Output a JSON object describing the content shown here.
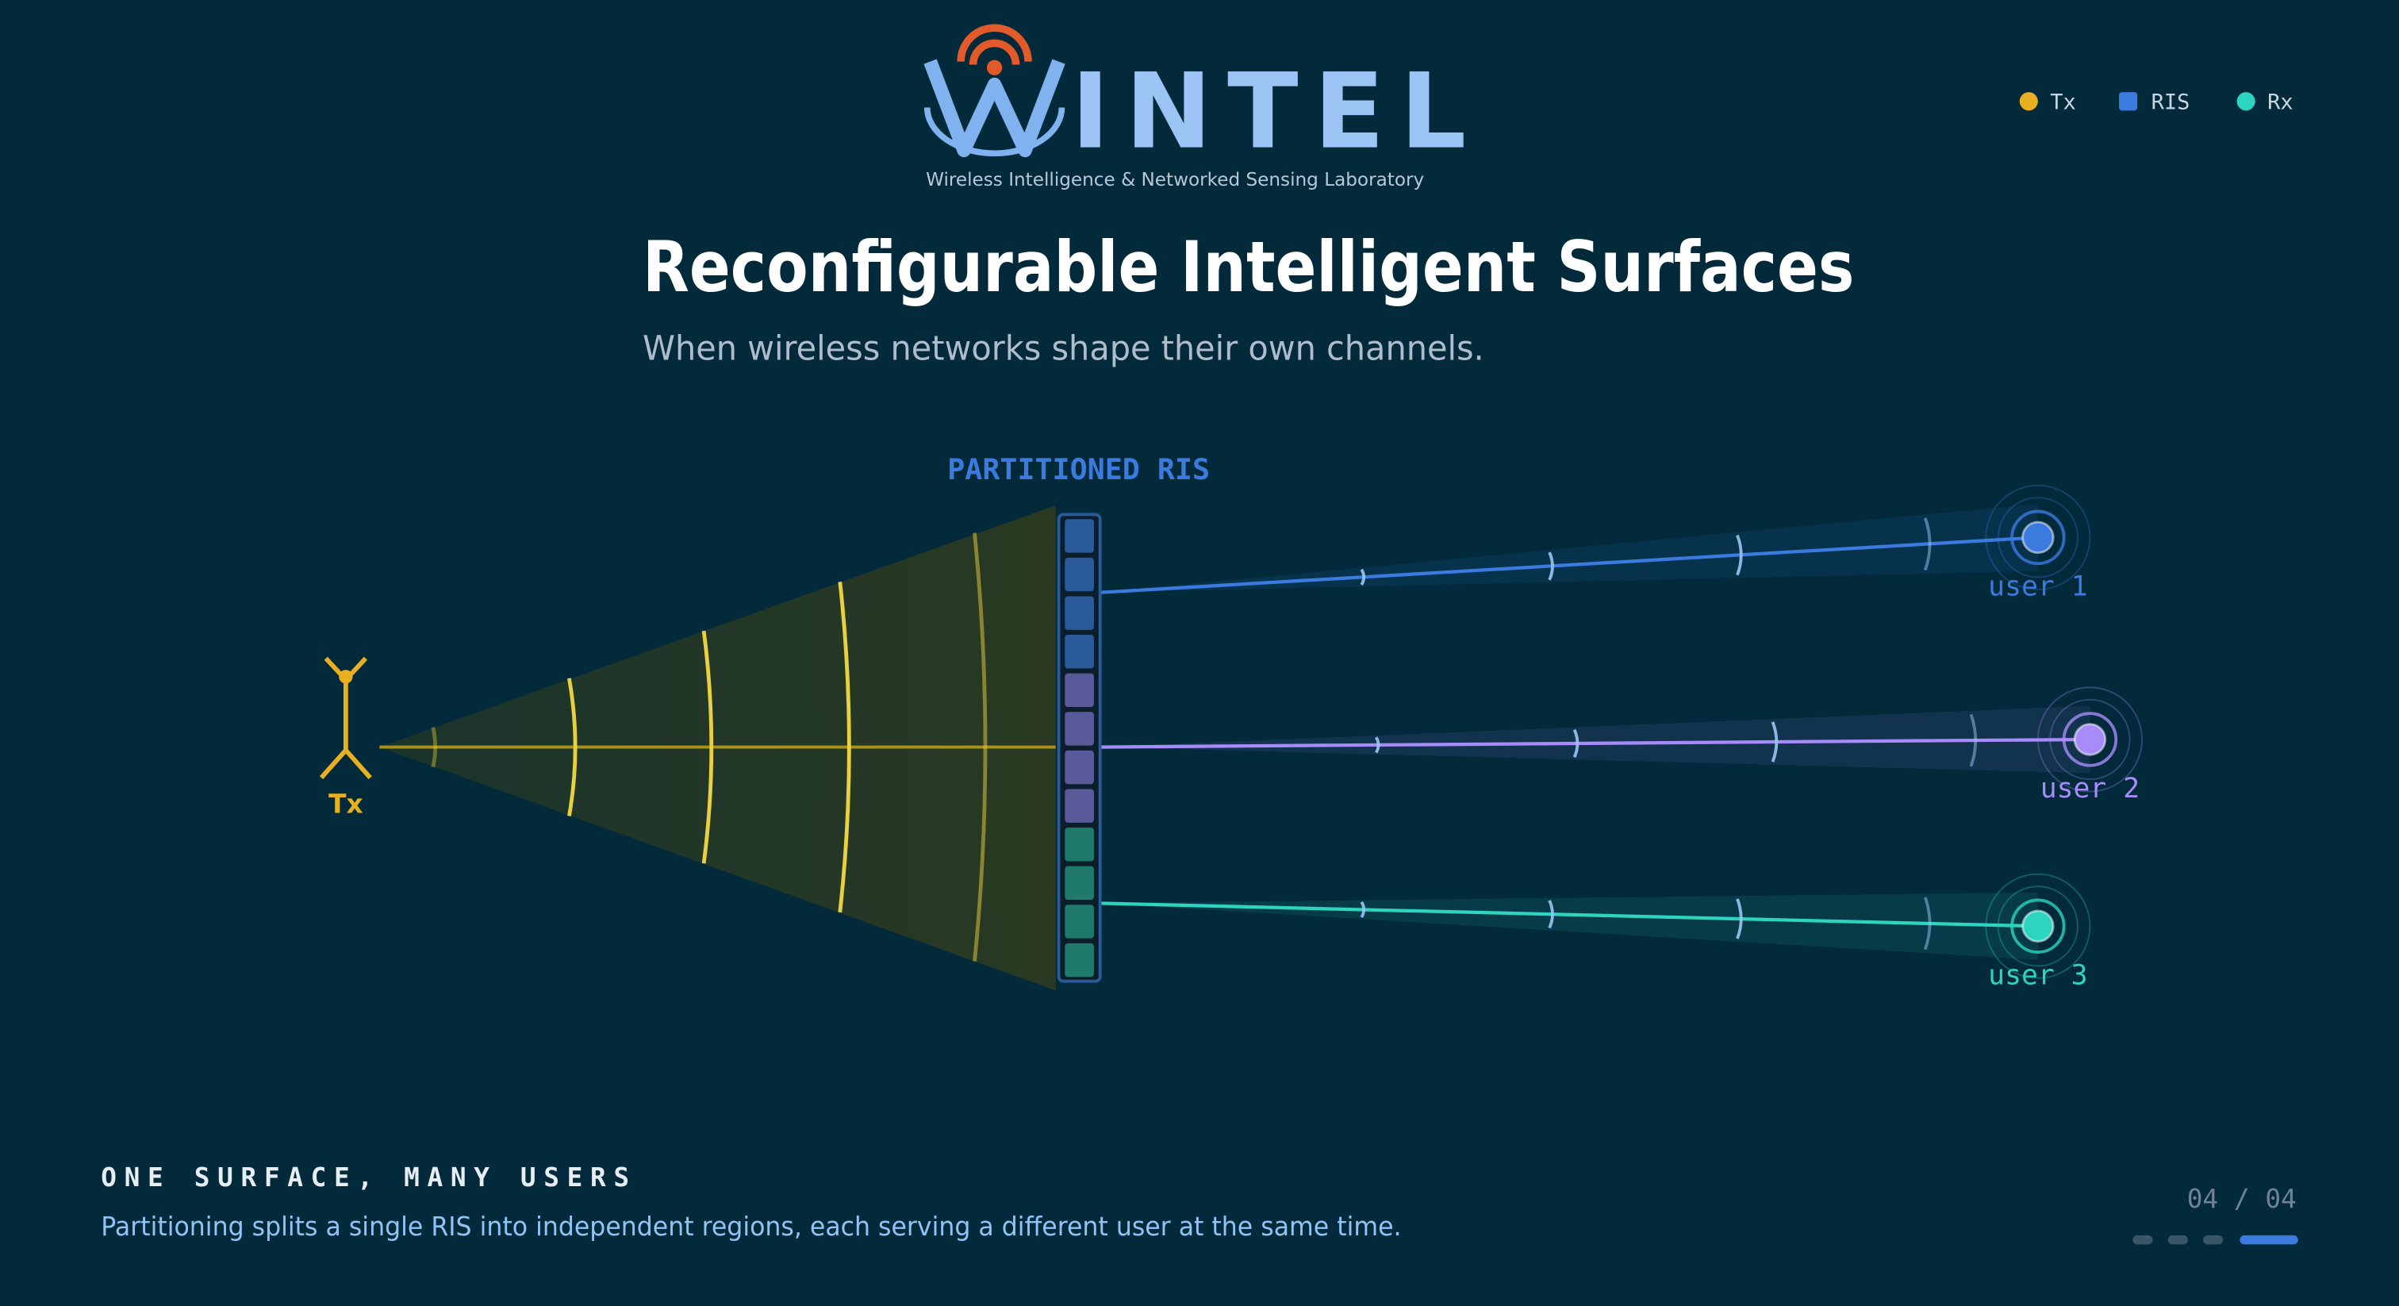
{
  "header": {
    "wordmark": "INTEL",
    "lab_name": "Wireless Intelligence & Networked Sensing Laboratory"
  },
  "legend": [
    "Tx",
    "RIS",
    "Rx"
  ],
  "title": "Reconfigurable Intelligent Surfaces",
  "subtitle": "When wireless networks shape their own channels.",
  "diagram": {
    "ris_label": "PARTITIONED RIS",
    "tx_label": "Tx",
    "users": [
      "user 1",
      "user 2",
      "user 3"
    ]
  },
  "footer": {
    "heading": "ONE SURFACE, MANY USERS",
    "text": "Partitioning splits a single RIS into independent regions, each serving a different user at the same time.",
    "page": "04 / 04"
  }
}
